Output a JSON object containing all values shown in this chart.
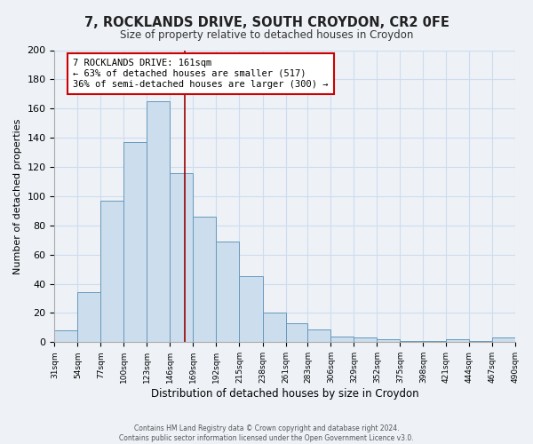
{
  "title": "7, ROCKLANDS DRIVE, SOUTH CROYDON, CR2 0FE",
  "subtitle": "Size of property relative to detached houses in Croydon",
  "xlabel": "Distribution of detached houses by size in Croydon",
  "ylabel": "Number of detached properties",
  "footnote1": "Contains HM Land Registry data © Crown copyright and database right 2024.",
  "footnote2": "Contains public sector information licensed under the Open Government Licence v3.0.",
  "bar_labels": [
    "31sqm",
    "54sqm",
    "77sqm",
    "100sqm",
    "123sqm",
    "146sqm",
    "169sqm",
    "192sqm",
    "215sqm",
    "238sqm",
    "261sqm",
    "283sqm",
    "306sqm",
    "329sqm",
    "352sqm",
    "375sqm",
    "398sqm",
    "421sqm",
    "444sqm",
    "467sqm",
    "490sqm"
  ],
  "bar_values": [
    8,
    34,
    97,
    137,
    165,
    116,
    86,
    69,
    45,
    20,
    13,
    9,
    4,
    3,
    2,
    1,
    1,
    2,
    1,
    3
  ],
  "bar_edges": [
    31,
    54,
    77,
    100,
    123,
    146,
    169,
    192,
    215,
    238,
    261,
    283,
    306,
    329,
    352,
    375,
    398,
    421,
    444,
    467,
    490
  ],
  "bar_color": "#ccdded",
  "bar_edgecolor": "#6699bb",
  "ylim": [
    0,
    200
  ],
  "yticks": [
    0,
    20,
    40,
    60,
    80,
    100,
    120,
    140,
    160,
    180,
    200
  ],
  "property_size": 161,
  "marker_line_color": "#990000",
  "annotation_title": "7 ROCKLANDS DRIVE: 161sqm",
  "annotation_line1": "← 63% of detached houses are smaller (517)",
  "annotation_line2": "36% of semi-detached houses are larger (300) →",
  "annotation_box_edgecolor": "#cc0000",
  "annotation_box_facecolor": "#ffffff",
  "grid_color": "#ccddee",
  "background_color": "#eef2f7"
}
